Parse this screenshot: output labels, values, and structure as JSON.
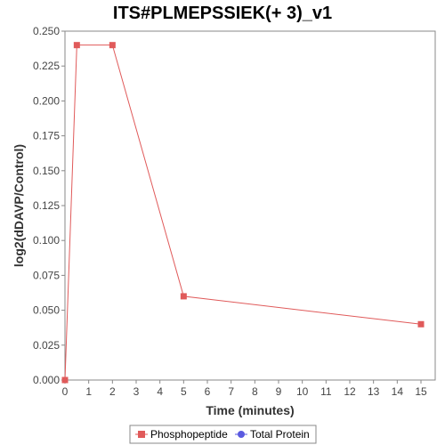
{
  "chart_data": {
    "type": "line",
    "title": "ITS#PLMEPSSIEK(+ 3)_v1",
    "xlabel": "Time (minutes)",
    "ylabel": "log2(dDAVP/Control)",
    "xlim": [
      0,
      15.6
    ],
    "ylim": [
      0,
      0.25
    ],
    "x_ticks": [
      "0",
      "1",
      "2",
      "3",
      "4",
      "5",
      "6",
      "7",
      "8",
      "9",
      "10",
      "11",
      "12",
      "13",
      "14",
      "15"
    ],
    "y_ticks": [
      "0.000",
      "0.025",
      "0.050",
      "0.075",
      "0.100",
      "0.125",
      "0.150",
      "0.175",
      "0.200",
      "0.225",
      "0.250"
    ],
    "grid": false,
    "legend_position": "bottom",
    "series": [
      {
        "name": "Phosphopeptide",
        "color": "#e05a5a",
        "marker": "square",
        "x": [
          0,
          0.5,
          2,
          5,
          15
        ],
        "y": [
          0.0,
          0.24,
          0.24,
          0.06,
          0.04
        ]
      },
      {
        "name": "Total Protein",
        "color": "#5a5ae0",
        "marker": "circle",
        "x": [],
        "y": []
      }
    ]
  }
}
